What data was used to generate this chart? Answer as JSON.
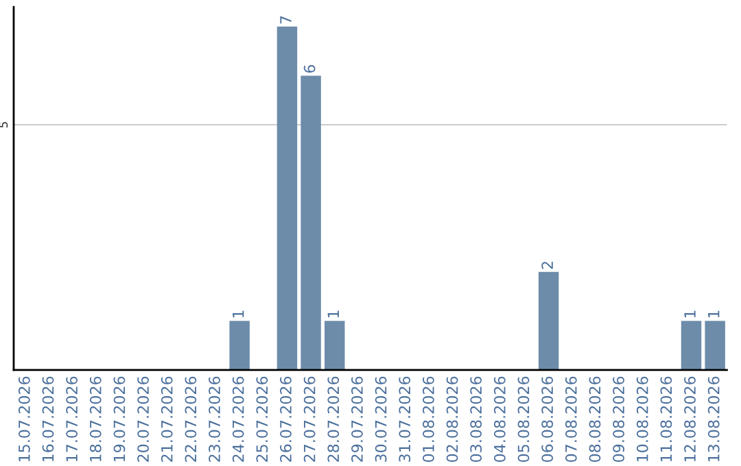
{
  "chart_data": {
    "type": "bar",
    "categories": [
      "15.07.2026",
      "16.07.2026",
      "17.07.2026",
      "18.07.2026",
      "19.07.2026",
      "20.07.2026",
      "21.07.2026",
      "22.07.2026",
      "23.07.2026",
      "24.07.2026",
      "25.07.2026",
      "26.07.2026",
      "27.07.2026",
      "28.07.2026",
      "29.07.2026",
      "30.07.2026",
      "31.07.2026",
      "01.08.2026",
      "02.08.2026",
      "03.08.2026",
      "04.08.2026",
      "05.08.2026",
      "06.08.2026",
      "07.08.2026",
      "08.08.2026",
      "09.08.2026",
      "10.08.2026",
      "11.08.2026",
      "12.08.2026",
      "13.08.2026"
    ],
    "values": [
      0,
      0,
      0,
      0,
      0,
      0,
      0,
      0,
      0,
      1,
      0,
      7,
      6,
      1,
      0,
      0,
      0,
      0,
      0,
      0,
      0,
      0,
      2,
      0,
      0,
      0,
      0,
      0,
      1,
      1
    ],
    "value_labels": [
      null,
      null,
      null,
      null,
      null,
      null,
      null,
      null,
      null,
      "1",
      null,
      "7",
      "6",
      "1",
      null,
      null,
      null,
      null,
      null,
      null,
      null,
      null,
      "2",
      null,
      null,
      null,
      null,
      null,
      "1",
      "1"
    ],
    "color": "#6d8caa",
    "ylim": [
      0,
      7.4
    ],
    "yticks": [
      5
    ],
    "grid": "y",
    "legend": false
  }
}
